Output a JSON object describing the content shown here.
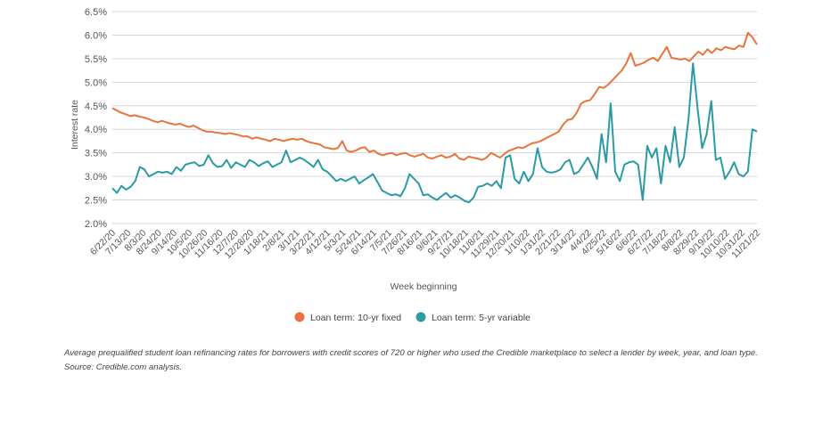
{
  "chart_data": {
    "type": "line",
    "title": "",
    "xlabel": "Week beginning",
    "ylabel": "Interest rate",
    "ylim": [
      2.0,
      6.5
    ],
    "yticks": [
      "6.5%",
      "6.0%",
      "5.5%",
      "5.0%",
      "4.5%",
      "4.0%",
      "3.5%",
      "3.0%",
      "2.5%",
      "2.0%"
    ],
    "grid": true,
    "legend_position": "bottom-center",
    "x_tick_labels": [
      "6/22/20",
      "7/13/20",
      "8/3/20",
      "8/24/20",
      "9/14/20",
      "10/5/20",
      "10/26/20",
      "11/16/20",
      "12/7/20",
      "12/28/20",
      "1/18/21",
      "2/8/21",
      "3/1/21",
      "3/22/21",
      "4/12/21",
      "5/3/21",
      "5/24/21",
      "6/14/21",
      "7/5/21",
      "7/26/21",
      "8/16/21",
      "9/6/21",
      "9/27/21",
      "10/18/21",
      "11/8/21",
      "11/29/21",
      "12/20/21",
      "1/10/22",
      "1/31/22",
      "2/21/22",
      "3/14/22",
      "4/4/22",
      "4/25/22",
      "5/16/22",
      "6/6/22",
      "6/27/22",
      "7/18/22",
      "8/8/22",
      "8/29/22",
      "9/19/22",
      "10/10/22",
      "10/31/22",
      "11/21/22"
    ],
    "series": [
      {
        "name": "Loan term: 10-yr fixed",
        "color": "#e8743b",
        "values": [
          4.45,
          4.4,
          4.35,
          4.32,
          4.28,
          4.3,
          4.27,
          4.25,
          4.22,
          4.18,
          4.15,
          4.18,
          4.15,
          4.12,
          4.1,
          4.12,
          4.08,
          4.05,
          4.08,
          4.03,
          3.98,
          3.95,
          3.95,
          3.93,
          3.92,
          3.9,
          3.92,
          3.9,
          3.88,
          3.85,
          3.85,
          3.8,
          3.83,
          3.8,
          3.78,
          3.75,
          3.8,
          3.78,
          3.75,
          3.78,
          3.8,
          3.78,
          3.8,
          3.75,
          3.72,
          3.7,
          3.68,
          3.62,
          3.6,
          3.58,
          3.6,
          3.75,
          3.55,
          3.52,
          3.55,
          3.6,
          3.62,
          3.52,
          3.55,
          3.48,
          3.45,
          3.48,
          3.5,
          3.45,
          3.48,
          3.5,
          3.45,
          3.42,
          3.45,
          3.48,
          3.4,
          3.38,
          3.42,
          3.45,
          3.4,
          3.42,
          3.48,
          3.38,
          3.35,
          3.42,
          3.4,
          3.38,
          3.35,
          3.4,
          3.5,
          3.45,
          3.4,
          3.48,
          3.55,
          3.58,
          3.62,
          3.6,
          3.65,
          3.7,
          3.72,
          3.75,
          3.8,
          3.85,
          3.9,
          3.95,
          4.1,
          4.2,
          4.22,
          4.35,
          4.55,
          4.6,
          4.62,
          4.75,
          4.9,
          4.88,
          4.95,
          5.05,
          5.15,
          5.25,
          5.4,
          5.62,
          5.35,
          5.38,
          5.42,
          5.48,
          5.52,
          5.45,
          5.6,
          5.75,
          5.52,
          5.5,
          5.48,
          5.5,
          5.45,
          5.55,
          5.65,
          5.58,
          5.7,
          5.62,
          5.72,
          5.68,
          5.75,
          5.72,
          5.7,
          5.78,
          5.75,
          6.05,
          5.95,
          5.8
        ]
      },
      {
        "name": "Loan term: 5-yr variable",
        "color": "#2a9ba3",
        "values": [
          2.75,
          2.65,
          2.8,
          2.72,
          2.78,
          2.9,
          3.2,
          3.15,
          3.0,
          3.05,
          3.1,
          3.08,
          3.1,
          3.05,
          3.2,
          3.12,
          3.25,
          3.28,
          3.3,
          3.22,
          3.25,
          3.45,
          3.28,
          3.2,
          3.22,
          3.35,
          3.18,
          3.3,
          3.25,
          3.2,
          3.35,
          3.3,
          3.22,
          3.28,
          3.32,
          3.2,
          3.25,
          3.3,
          3.55,
          3.3,
          3.35,
          3.4,
          3.35,
          3.28,
          3.2,
          3.35,
          3.15,
          3.1,
          3.0,
          2.9,
          2.95,
          2.9,
          2.95,
          3.0,
          2.85,
          2.92,
          2.98,
          3.05,
          2.88,
          2.7,
          2.65,
          2.6,
          2.62,
          2.58,
          2.75,
          3.05,
          2.95,
          2.85,
          2.6,
          2.62,
          2.55,
          2.5,
          2.58,
          2.65,
          2.55,
          2.6,
          2.55,
          2.48,
          2.45,
          2.55,
          2.78,
          2.8,
          2.85,
          2.8,
          2.9,
          2.75,
          3.4,
          3.45,
          2.95,
          2.85,
          3.1,
          2.9,
          3.05,
          3.6,
          3.2,
          3.1,
          3.08,
          3.1,
          3.15,
          3.3,
          3.35,
          3.05,
          3.1,
          3.25,
          3.4,
          3.2,
          2.95,
          3.9,
          3.3,
          4.55,
          3.1,
          2.9,
          3.25,
          3.3,
          3.32,
          3.25,
          2.5,
          3.65,
          3.4,
          3.6,
          2.85,
          3.65,
          3.3,
          4.05,
          3.2,
          3.4,
          4.2,
          5.4,
          4.45,
          3.6,
          3.9,
          4.6,
          3.35,
          3.4,
          2.95,
          3.1,
          3.3,
          3.05,
          3.0,
          3.1,
          4.0,
          3.95
        ]
      }
    ]
  },
  "caption": "Average prequalified student loan refinancing rates for borrowers with credit scores of 720 or higher who used the Credible marketplace to select a lender by week, year, and loan type. Source: Credible.com analysis."
}
